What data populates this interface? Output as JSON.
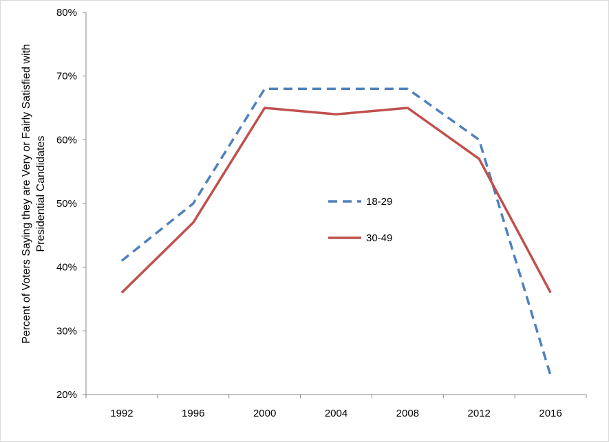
{
  "chart_data": {
    "type": "line",
    "title": "",
    "xlabel": "",
    "ylabel_lines": [
      "Percent of Voters Saying they are Very or Fairly Satisfied with",
      "Presidential Candidates"
    ],
    "categories": [
      "1992",
      "1996",
      "2000",
      "2004",
      "2008",
      "2012",
      "2016"
    ],
    "ylim": [
      20,
      80
    ],
    "y_ticks": [
      20,
      30,
      40,
      50,
      60,
      70,
      80
    ],
    "y_tick_labels": [
      "20%",
      "30%",
      "40%",
      "50%",
      "60%",
      "70%",
      "80%"
    ],
    "grid": false,
    "legend_position": "center",
    "series": [
      {
        "name": "18-29",
        "values": [
          41,
          50,
          68,
          68,
          68,
          60,
          23
        ],
        "color": "#4f81bd",
        "style": "dashed"
      },
      {
        "name": "30-49",
        "values": [
          36,
          47,
          65,
          64,
          65,
          57,
          36
        ],
        "color": "#c0504d",
        "style": "solid"
      }
    ]
  }
}
